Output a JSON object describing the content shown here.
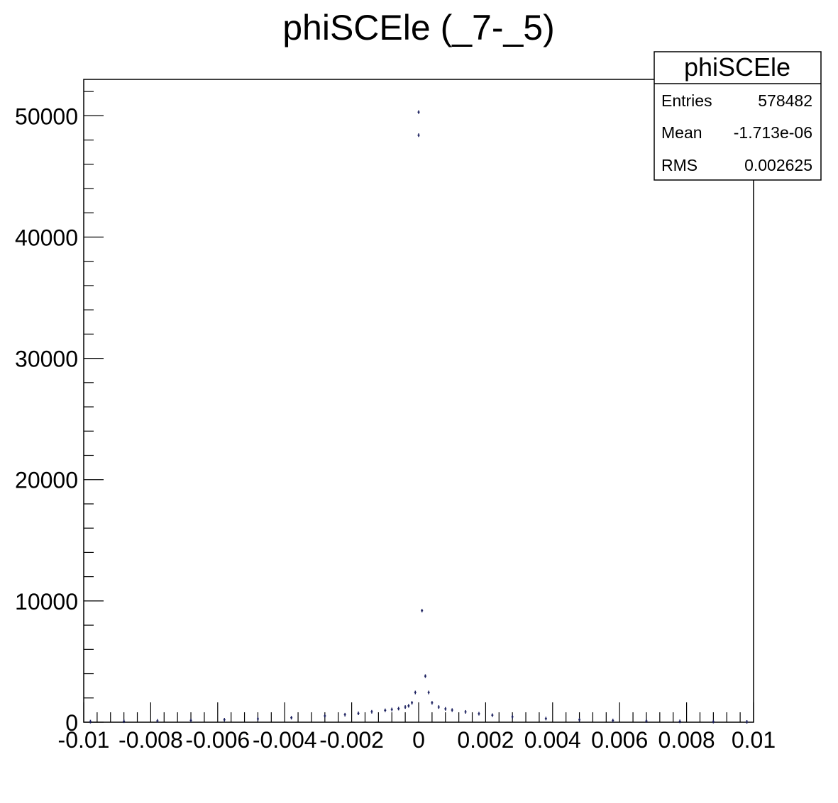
{
  "chart_data": {
    "type": "scatter",
    "title": "phiSCEle (_7-_5)",
    "xlabel": "",
    "ylabel": "",
    "xlim": [
      -0.01,
      0.01
    ],
    "ylim": [
      0,
      53000
    ],
    "x_ticks": [
      -0.01,
      -0.008,
      -0.006,
      -0.004,
      -0.002,
      0,
      0.002,
      0.004,
      0.006,
      0.008,
      0.01
    ],
    "x_tick_labels": [
      "-0.01",
      "-0.008",
      "-0.006",
      "-0.004",
      "-0.002",
      "0",
      "0.002",
      "0.004",
      "0.006",
      "0.008",
      "0.01"
    ],
    "y_ticks": [
      0,
      10000,
      20000,
      30000,
      40000,
      50000
    ],
    "y_tick_labels": [
      "0",
      "10000",
      "20000",
      "30000",
      "40000",
      "50000"
    ],
    "grid": false,
    "marker_color": "#1a1f5e",
    "series": [
      {
        "x": [
          -0.0098,
          -0.0088,
          -0.0078,
          -0.0068,
          -0.0058,
          -0.0048,
          -0.0038,
          -0.0028,
          -0.0022,
          -0.0018,
          -0.0014,
          -0.001,
          -0.0008,
          -0.0006,
          -0.0004,
          -0.0003,
          -0.0002,
          -0.0001,
          0,
          0.0001,
          0.0002,
          0.0003,
          0.0004,
          0.0006,
          0.0008,
          0.001,
          0.0014,
          0.0018,
          0.0022,
          0.0028,
          0.0038,
          0.0048,
          0.0058,
          0.0068,
          0.0078,
          0.0088,
          0.0098
        ],
        "y": [
          50,
          80,
          110,
          150,
          200,
          270,
          370,
          520,
          620,
          730,
          860,
          980,
          1050,
          1120,
          1250,
          1350,
          1600,
          2450,
          50300,
          9200,
          3800,
          2450,
          1600,
          1250,
          1100,
          1000,
          850,
          700,
          580,
          440,
          300,
          200,
          140,
          100,
          70,
          50,
          30
        ]
      },
      {
        "x": [
          0
        ],
        "y": [
          48400
        ]
      }
    ]
  },
  "stats_box": {
    "title": "phiSCEle",
    "rows": [
      {
        "label": "Entries",
        "value": "578482"
      },
      {
        "label": "Mean",
        "value": "-1.713e-06"
      },
      {
        "label": "RMS",
        "value": "0.002625"
      }
    ]
  }
}
